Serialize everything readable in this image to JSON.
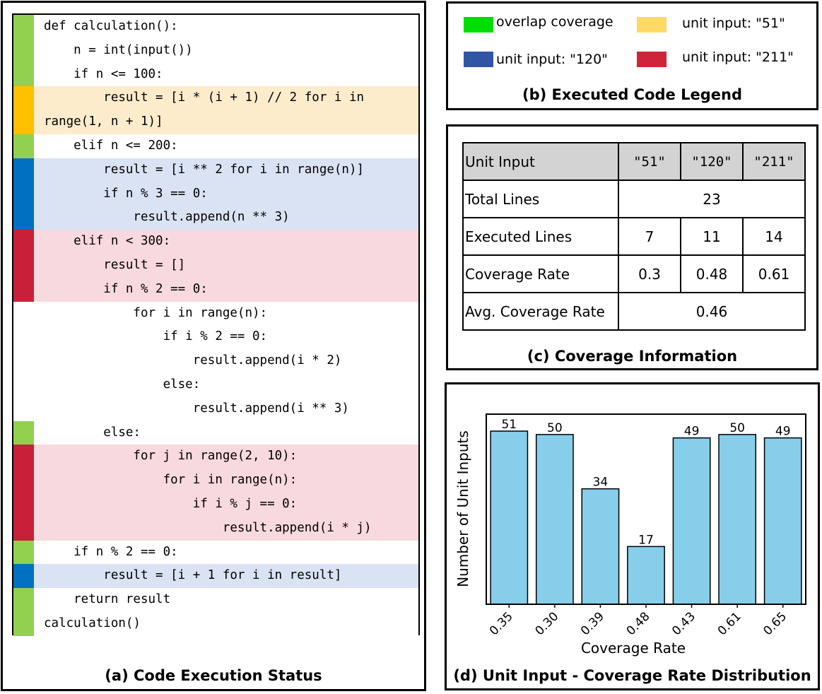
{
  "panel_a": {
    "caption": "(a) Code Execution Status",
    "lines": [
      {
        "text": "def calculation():",
        "status": "overlap"
      },
      {
        "text": "    n = int(input())",
        "status": "overlap"
      },
      {
        "text": "    if n <= 100:",
        "status": "overlap"
      },
      {
        "text": "        result = [i * (i + 1) // 2 for i in",
        "status": "input51"
      },
      {
        "text": "range(1, n + 1)]",
        "status": "input51"
      },
      {
        "text": "    elif n <= 200:",
        "status": "overlap"
      },
      {
        "text": "        result = [i ** 2 for i in range(n)]",
        "status": "input120"
      },
      {
        "text": "        if n % 3 == 0:",
        "status": "input120"
      },
      {
        "text": "            result.append(n ** 3)",
        "status": "input120"
      },
      {
        "text": "    elif n < 300:",
        "status": "input211"
      },
      {
        "text": "        result = []",
        "status": "input211"
      },
      {
        "text": "        if n % 2 == 0:",
        "status": "input211"
      },
      {
        "text": "            for i in range(n):",
        "status": "none"
      },
      {
        "text": "                if i % 2 == 0:",
        "status": "none"
      },
      {
        "text": "                    result.append(i * 2)",
        "status": "none"
      },
      {
        "text": "                else:",
        "status": "none"
      },
      {
        "text": "                    result.append(i ** 3)",
        "status": "none"
      },
      {
        "text": "        else:",
        "status": "overlap"
      },
      {
        "text": "            for j in range(2, 10):",
        "status": "input211"
      },
      {
        "text": "                for i in range(n):",
        "status": "input211"
      },
      {
        "text": "                    if i % j == 0:",
        "status": "input211"
      },
      {
        "text": "                        result.append(i * j)",
        "status": "input211"
      },
      {
        "text": "    if n % 2 == 0:",
        "status": "overlap"
      },
      {
        "text": "        result = [i + 1 for i in result]",
        "status": "input120"
      },
      {
        "text": "    return result",
        "status": "overlap"
      },
      {
        "text": "calculation()",
        "status": "overlap"
      }
    ]
  },
  "status_colors": {
    "overlap": {
      "bar": "#92d050",
      "bg": "#ffffff"
    },
    "input51": {
      "bar": "#ffc000",
      "bg": "#fdeccc"
    },
    "input120": {
      "bar": "#0070c0",
      "bg": "#dae3f3"
    },
    "input211": {
      "bar": "#c9203a",
      "bg": "#f8d9dd"
    },
    "none": {
      "bar": "#ffffff",
      "bg": "#ffffff"
    }
  },
  "panel_b": {
    "caption": "(b) Executed Code Legend",
    "items": [
      {
        "label": "overlap coverage",
        "color": "#00dd00"
      },
      {
        "label": "unit input: \"51\"",
        "color": "#ffd966"
      },
      {
        "label": "unit input: \"120\"",
        "color": "#2f55a4"
      },
      {
        "label": "unit input: \"211\"",
        "color": "#d0243b"
      }
    ]
  },
  "panel_c": {
    "caption": "(c) Coverage Information",
    "header_label": "Unit Input",
    "inputs": [
      "\"51\"",
      "\"120\"",
      "\"211\""
    ],
    "total_lines_label": "Total Lines",
    "total_lines": "23",
    "executed_label": "Executed Lines",
    "executed": [
      "7",
      "11",
      "14"
    ],
    "rate_label": "Coverage Rate",
    "rates": [
      "0.3",
      "0.48",
      "0.61"
    ],
    "avg_label": "Avg. Coverage Rate",
    "avg": "0.46",
    "header_color": "#d3d3d3"
  },
  "panel_d": {
    "caption": "(d) Unit Input - Coverage Rate Distribution"
  },
  "chart_data": {
    "type": "bar",
    "categories": [
      "0.35",
      "0.30",
      "0.39",
      "0.48",
      "0.43",
      "0.61",
      "0.65"
    ],
    "values": [
      51,
      50,
      34,
      17,
      49,
      50,
      49
    ],
    "title": "",
    "xlabel": "Coverage Rate",
    "ylabel": "Number of Unit Inputs",
    "ylim": [
      0,
      56
    ],
    "bar_color": "#87ceeb",
    "data_labels": true,
    "y_ticks_visible": false
  }
}
